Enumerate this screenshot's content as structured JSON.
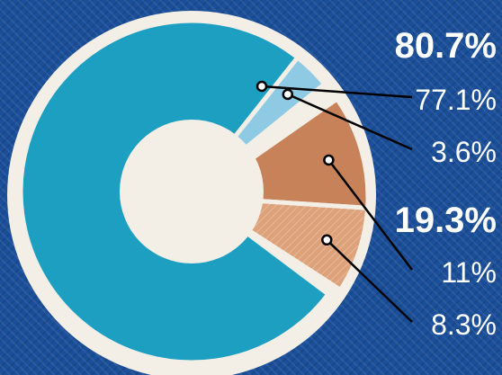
{
  "chart_data": {
    "type": "pie",
    "style": "donut, exploded groups",
    "groups": [
      {
        "total_label": "80.7%",
        "color_family": "blue",
        "slices": [
          {
            "label": "77.1%",
            "value": 77.1,
            "color": "#1d9fc2"
          },
          {
            "label": "3.6%",
            "value": 3.6,
            "color": "#8ecae3"
          }
        ]
      },
      {
        "total_label": "19.3%",
        "color_family": "orange",
        "slices": [
          {
            "label": "11%",
            "value": 11,
            "color": "#c8825a"
          },
          {
            "label": "8.3%",
            "value": 8.3,
            "color": "#dea27a"
          }
        ]
      }
    ],
    "background_color": "#1b4f9a",
    "ring_color": "#f3efe6",
    "title": "",
    "legend": "none"
  }
}
